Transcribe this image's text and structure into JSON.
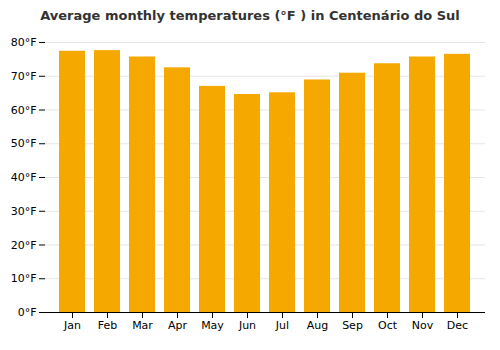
{
  "chart_data": {
    "type": "bar",
    "title": "Average monthly temperatures (°F ) in Centenário do Sul",
    "categories": [
      "Jan",
      "Feb",
      "Mar",
      "Apr",
      "May",
      "Jun",
      "Jul",
      "Aug",
      "Sep",
      "Oct",
      "Nov",
      "Dec"
    ],
    "values": [
      77.4,
      77.6,
      75.7,
      72.5,
      67.0,
      64.6,
      65.1,
      68.9,
      70.9,
      73.7,
      75.7,
      76.5
    ],
    "color": "#F5A800",
    "ylim": [
      0,
      80
    ],
    "yticks": [
      {
        "value": 0,
        "label": "0°F"
      },
      {
        "value": 10,
        "label": "10°F"
      },
      {
        "value": 20,
        "label": "20°F"
      },
      {
        "value": 30,
        "label": "30°F"
      },
      {
        "value": 40,
        "label": "40°F"
      },
      {
        "value": 50,
        "label": "50°F"
      },
      {
        "value": 60,
        "label": "60°F"
      },
      {
        "value": 70,
        "label": "70°F"
      },
      {
        "value": 80,
        "label": "80°F"
      }
    ],
    "grid": true
  }
}
